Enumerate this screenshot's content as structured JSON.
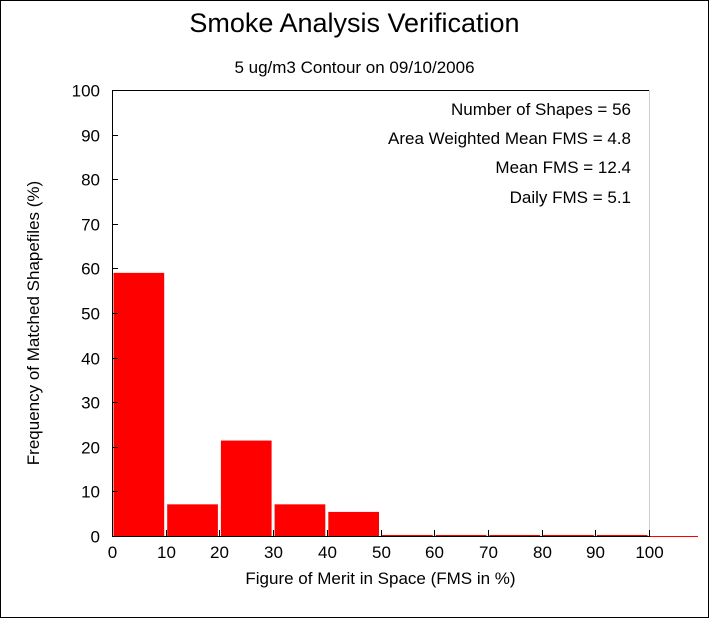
{
  "chart_data": {
    "type": "bar",
    "title": "Smoke Analysis Verification",
    "subtitle": "5 ug/m3 Contour on 09/10/2006",
    "xlabel": "Figure of Merit in Space (FMS in %)",
    "ylabel": "Frequency of Matched Shapefiles (%)",
    "bin_edges": [
      0,
      10,
      20,
      30,
      40,
      50,
      60,
      70,
      80,
      90,
      100
    ],
    "values": [
      59,
      7.1,
      21.4,
      7.1,
      5.4,
      0,
      0,
      0,
      0,
      0
    ],
    "x_ticks": [
      "0",
      "10",
      "20",
      "30",
      "40",
      "50",
      "60",
      "70",
      "80",
      "90",
      "100"
    ],
    "y_ticks": [
      "0",
      "10",
      "20",
      "30",
      "40",
      "50",
      "60",
      "70",
      "80",
      "90",
      "100"
    ],
    "xlim": [
      0,
      100
    ],
    "ylim": [
      0,
      100
    ],
    "bar_color": "#ff0000",
    "grid": false,
    "annotations": [
      "Number of Shapes = 56",
      "Area Weighted Mean FMS = 4.8",
      "Mean FMS = 12.4",
      "Daily FMS = 5.1"
    ]
  }
}
